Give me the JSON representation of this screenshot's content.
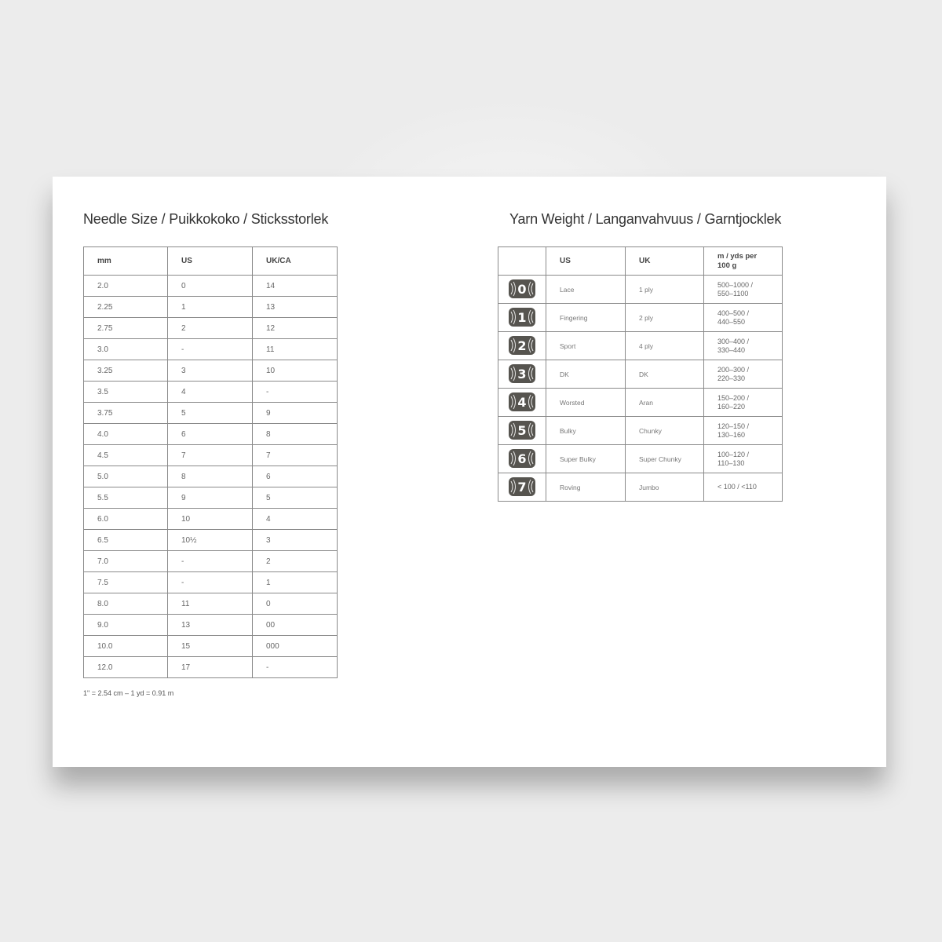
{
  "needle_size": {
    "title": "Needle Size / Puikkokoko / Sticksstorlek",
    "headers": [
      "mm",
      "US",
      "UK/CA"
    ],
    "rows": [
      [
        "2.0",
        "0",
        "14"
      ],
      [
        "2.25",
        "1",
        "13"
      ],
      [
        "2.75",
        "2",
        "12"
      ],
      [
        "3.0",
        "-",
        "11"
      ],
      [
        "3.25",
        "3",
        "10"
      ],
      [
        "3.5",
        "4",
        "-"
      ],
      [
        "3.75",
        "5",
        "9"
      ],
      [
        "4.0",
        "6",
        "8"
      ],
      [
        "4.5",
        "7",
        "7"
      ],
      [
        "5.0",
        "8",
        "6"
      ],
      [
        "5.5",
        "9",
        "5"
      ],
      [
        "6.0",
        "10",
        "4"
      ],
      [
        "6.5",
        "10½",
        "3"
      ],
      [
        "7.0",
        "-",
        "2"
      ],
      [
        "7.5",
        "-",
        "1"
      ],
      [
        "8.0",
        "11",
        "0"
      ],
      [
        "9.0",
        "13",
        "00"
      ],
      [
        "10.0",
        "15",
        "000"
      ],
      [
        "12.0",
        "17",
        "-"
      ]
    ],
    "note": "1\" = 2.54 cm  –  1 yd = 0.91 m"
  },
  "yarn_weight": {
    "title": "Yarn Weight / Langanvahvuus / Garntjocklek",
    "headers": [
      "",
      "US",
      "UK",
      "m / yds per 100 g"
    ],
    "icon": "yarn-skein-icon",
    "icon_color": "#56544f",
    "rows": [
      {
        "symbol": "0",
        "us": "Lace",
        "uk": "1 ply",
        "m1": "500–1000 /",
        "m2": "550–1100"
      },
      {
        "symbol": "1",
        "us": "Fingering",
        "uk": "2 ply",
        "m1": "400–500 /",
        "m2": "440–550"
      },
      {
        "symbol": "2",
        "us": "Sport",
        "uk": "4 ply",
        "m1": "300–400 /",
        "m2": "330–440"
      },
      {
        "symbol": "3",
        "us": "DK",
        "uk": "DK",
        "m1": "200–300 /",
        "m2": "220–330"
      },
      {
        "symbol": "4",
        "us": "Worsted",
        "uk": "Aran",
        "m1": "150–200 /",
        "m2": "160–220"
      },
      {
        "symbol": "5",
        "us": "Bulky",
        "uk": "Chunky",
        "m1": "120–150 /",
        "m2": "130–160"
      },
      {
        "symbol": "6",
        "us": "Super Bulky",
        "uk": "Super Chunky",
        "m1": "100–120 /",
        "m2": "110–130"
      },
      {
        "symbol": "7",
        "us": "Roving",
        "uk": "Jumbo",
        "m1": "< 100 / <110",
        "m2": ""
      }
    ]
  }
}
